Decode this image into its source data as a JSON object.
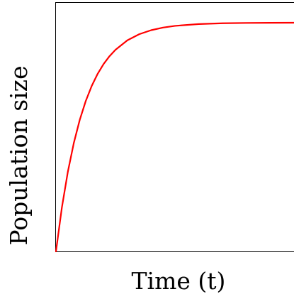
{
  "chart_data": {
    "type": "line",
    "title": "",
    "xlabel": "Time (t)",
    "ylabel": "Population size",
    "grid": false,
    "legend": "none",
    "xlim": [
      0,
      10
    ],
    "ylim": [
      0,
      1
    ],
    "series": [
      {
        "color": "#ff0000",
        "x": [
          0,
          0.25,
          0.5,
          0.75,
          1,
          1.25,
          1.5,
          1.75,
          2,
          2.25,
          2.5,
          3,
          3.5,
          4,
          4.5,
          5,
          6,
          7,
          8,
          9,
          10
        ],
        "y": [
          0,
          0.1775,
          0.3207,
          0.4362,
          0.5294,
          0.6046,
          0.6653,
          0.7142,
          0.7537,
          0.7855,
          0.8112,
          0.8492,
          0.8739,
          0.89,
          0.9005,
          0.9074,
          0.9147,
          0.9178,
          0.9191,
          0.9197,
          0.9199
        ]
      }
    ]
  }
}
